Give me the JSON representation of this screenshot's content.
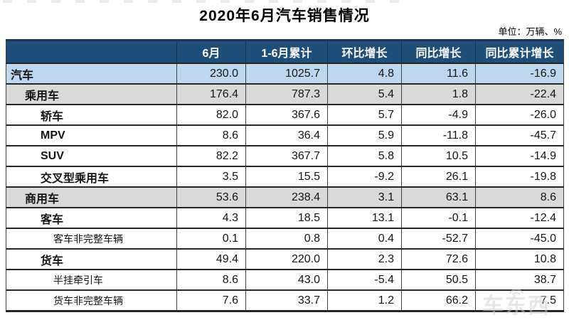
{
  "chart_data": {
    "type": "table",
    "title": "2020年6月汽车销售情况",
    "unit": "单位：万辆、%",
    "columns": [
      "6月",
      "1-6月累计",
      "环比增长",
      "同比增长",
      "同比累计增长"
    ],
    "rows": [
      {
        "label": "汽车",
        "indent": 0,
        "bold": true,
        "bg": "blue",
        "values": [
          "230.0",
          "1025.7",
          "4.8",
          "11.6",
          "-16.9"
        ]
      },
      {
        "label": "乘用车",
        "indent": 1,
        "bold": true,
        "bg": "gray",
        "values": [
          "176.4",
          "787.3",
          "5.4",
          "1.8",
          "-22.4"
        ]
      },
      {
        "label": "轿车",
        "indent": 2,
        "bold": true,
        "bg": "white",
        "values": [
          "82.0",
          "367.6",
          "5.7",
          "-4.9",
          "-26.0"
        ]
      },
      {
        "label": "MPV",
        "indent": 2,
        "bold": true,
        "bg": "white",
        "values": [
          "8.6",
          "36.4",
          "5.9",
          "-11.8",
          "-45.7"
        ]
      },
      {
        "label": "SUV",
        "indent": 2,
        "bold": true,
        "bg": "white",
        "values": [
          "82.2",
          "367.7",
          "5.8",
          "10.5",
          "-14.9"
        ]
      },
      {
        "label": "交叉型乘用车",
        "indent": 2,
        "bold": true,
        "bg": "white",
        "values": [
          "3.5",
          "15.5",
          "-9.2",
          "26.1",
          "-19.8"
        ]
      },
      {
        "label": "商用车",
        "indent": 1,
        "bold": true,
        "bg": "gray",
        "values": [
          "53.6",
          "238.4",
          "3.1",
          "63.1",
          "8.6"
        ]
      },
      {
        "label": "客车",
        "indent": 2,
        "bold": true,
        "bg": "white",
        "values": [
          "4.3",
          "18.5",
          "13.1",
          "-0.1",
          "-12.4"
        ]
      },
      {
        "label": "客车非完整车辆",
        "indent": 3,
        "bold": false,
        "bg": "white",
        "values": [
          "0.1",
          "0.8",
          "0.4",
          "-52.7",
          "-45.0"
        ]
      },
      {
        "label": "货车",
        "indent": 2,
        "bold": true,
        "bg": "white",
        "values": [
          "49.4",
          "220.0",
          "2.3",
          "72.6",
          "10.8"
        ]
      },
      {
        "label": "半挂牵引车",
        "indent": 3,
        "bold": false,
        "bg": "white",
        "values": [
          "8.6",
          "43.0",
          "-5.4",
          "50.5",
          "38.7"
        ]
      },
      {
        "label": "货车非完整车辆",
        "indent": 3,
        "bold": false,
        "bg": "white",
        "values": [
          "7.6",
          "33.7",
          "1.2",
          "66.2",
          "7.5"
        ]
      }
    ]
  },
  "watermark": {
    "text": "车东西",
    "icon": "signal-arcs-icon"
  },
  "colors": {
    "header_bg": "#1F4E79",
    "header_text": "#FFFFFF",
    "row_highlight_blue": "#BDD7EE",
    "row_highlight_gray": "#D9D9D9",
    "border_dark": "#262626",
    "table_top_border": "#17375E"
  }
}
